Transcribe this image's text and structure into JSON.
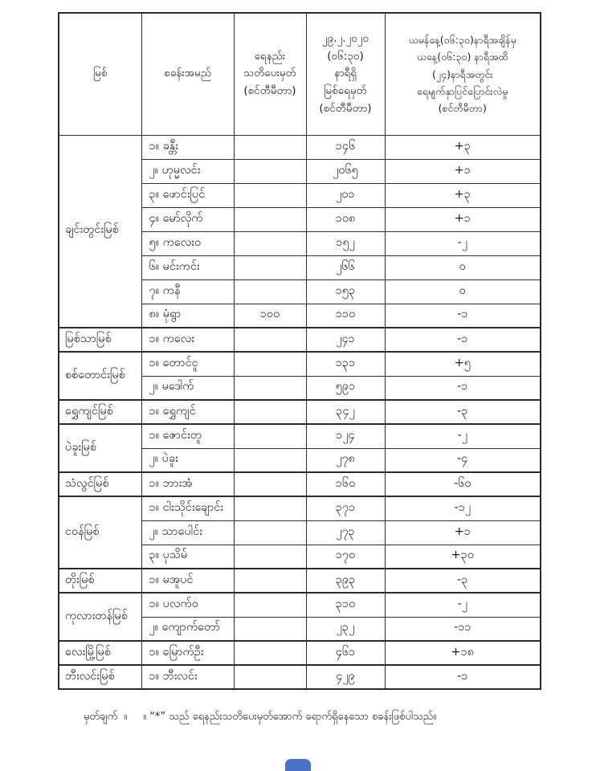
{
  "table": {
    "headers": {
      "river": "မြစ်",
      "station": "စခန်းအမည်",
      "warning": "ရေနည်း\nသတိပေးမှတ်\n(စင်တီမီတာ)",
      "level": "၂၉.၂.၂၀၂၀\n(၀၆:၃၀)\nနာရီရှိ\nမြစ်ရေမှတ်\n(စင်တီမီတာ)",
      "change": "ယမန်နေ့(၀၆:၃၀)နာရီအချိန်မှ\nယနေ့(၀၆:၃၀) နာရီအထိ\n(၂၄)နာရီအတွင်း\nရေမျက်နှာပြင်ပြောင်းလဲမှု\n(စင်တီမီတာ)"
    },
    "groups": [
      {
        "river": "ချင်းတွင်းမြစ်",
        "stations": [
          {
            "name": "၁။ ခန္တီး",
            "warning": "",
            "level": "၁၄၆",
            "change": "+၃"
          },
          {
            "name": "၂။ ဟုမ္မလင်း",
            "warning": "",
            "level": "၂၀၆၅",
            "change": "+၁"
          },
          {
            "name": "၃။ ဖောင်းပြင်",
            "warning": "",
            "level": "၂၀၁",
            "change": "+၃"
          },
          {
            "name": "၄။ မော်လိုက်",
            "warning": "",
            "level": "၁၀၈",
            "change": "+၁"
          },
          {
            "name": "၅။ ကလေးဝ",
            "warning": "",
            "level": "၁၅၂",
            "change": "-၂"
          },
          {
            "name": "၆။ မင်းကင်း",
            "warning": "",
            "level": "၂၆၆",
            "change": "၀"
          },
          {
            "name": "၇။ ကနီ",
            "warning": "",
            "level": "၁၅၃",
            "change": "၀"
          },
          {
            "name": "၈။ မုံရွာ",
            "warning": "၁၀၀",
            "level": "၁၁၀",
            "change": "-၁"
          }
        ]
      },
      {
        "river": "မြစ်သာမြစ်",
        "stations": [
          {
            "name": "၁။ ကလေး",
            "warning": "",
            "level": "၂၄၁",
            "change": "-၁"
          }
        ]
      },
      {
        "river": "စစ်တောင်းမြစ်",
        "stations": [
          {
            "name": "၁။ တောင်ငူ",
            "warning": "",
            "level": "၁၃၁",
            "change": "+၅"
          },
          {
            "name": "၂။ မဒေါက်",
            "warning": "",
            "level": "၅၉၁",
            "change": "-၁"
          }
        ]
      },
      {
        "river": "ရွှေကျင်မြစ်",
        "stations": [
          {
            "name": "၁။ ရွှေကျင်",
            "warning": "",
            "level": "၃၄၂",
            "change": "-၃"
          }
        ]
      },
      {
        "river": "ပဲခူးမြစ်",
        "stations": [
          {
            "name": "၁။ ဇောင်းတူ",
            "warning": "",
            "level": "၁၂၄",
            "change": "-၂"
          },
          {
            "name": "၂။ ပဲခူး",
            "warning": "",
            "level": "၂၇၈",
            "change": "-၄"
          }
        ]
      },
      {
        "river": "သံလွင်မြစ်",
        "stations": [
          {
            "name": "၁။ ဘားအံ",
            "warning": "",
            "level": "၁၆၀",
            "change": "-၆၀"
          }
        ]
      },
      {
        "river": "ငဝန်မြစ်",
        "stations": [
          {
            "name": "၁။ ငါးသိုင်းချောင်း",
            "warning": "",
            "level": "၃၇၁",
            "change": "-၁၂"
          },
          {
            "name": "၂။ သာပေါင်း",
            "warning": "",
            "level": "၂၇၃",
            "change": "+၁"
          },
          {
            "name": "၃။ ပုသိမ်",
            "warning": "",
            "level": "၁၇၀",
            "change": "+၃၀"
          }
        ]
      },
      {
        "river": "တိုးမြစ်",
        "stations": [
          {
            "name": "၁။ မအူပင်",
            "warning": "",
            "level": "၃၉၃",
            "change": "-၃"
          }
        ]
      },
      {
        "river": "ကုလားတန်မြစ်",
        "stations": [
          {
            "name": "၁။ ပလက်ဝ",
            "warning": "",
            "level": "၃၁၀",
            "change": "-၂"
          },
          {
            "name": "၂။ ကျောက်တော်",
            "warning": "",
            "level": "၂၃၂",
            "change": "-၁၁"
          }
        ]
      },
      {
        "river": "လေးမြို့မြစ်",
        "stations": [
          {
            "name": "၁။ မြောက်ဦး",
            "warning": "",
            "level": "၄၆၁",
            "change": "+၁၈"
          }
        ]
      },
      {
        "river": "ဘီးလင်းမြစ်",
        "stations": [
          {
            "name": "၁။ ဘီးလင်း",
            "warning": "",
            "level": "၄၂၉",
            "change": "-၁"
          }
        ]
      }
    ]
  },
  "footer": {
    "label": "မှတ်ချက်",
    "separator": "။",
    "note": "။ “*” သည် ရေနည်းသတိပေးမှတ်အောက် ရောက်ရှိနေသော စခန်းဖြစ်ပါသည်။"
  }
}
